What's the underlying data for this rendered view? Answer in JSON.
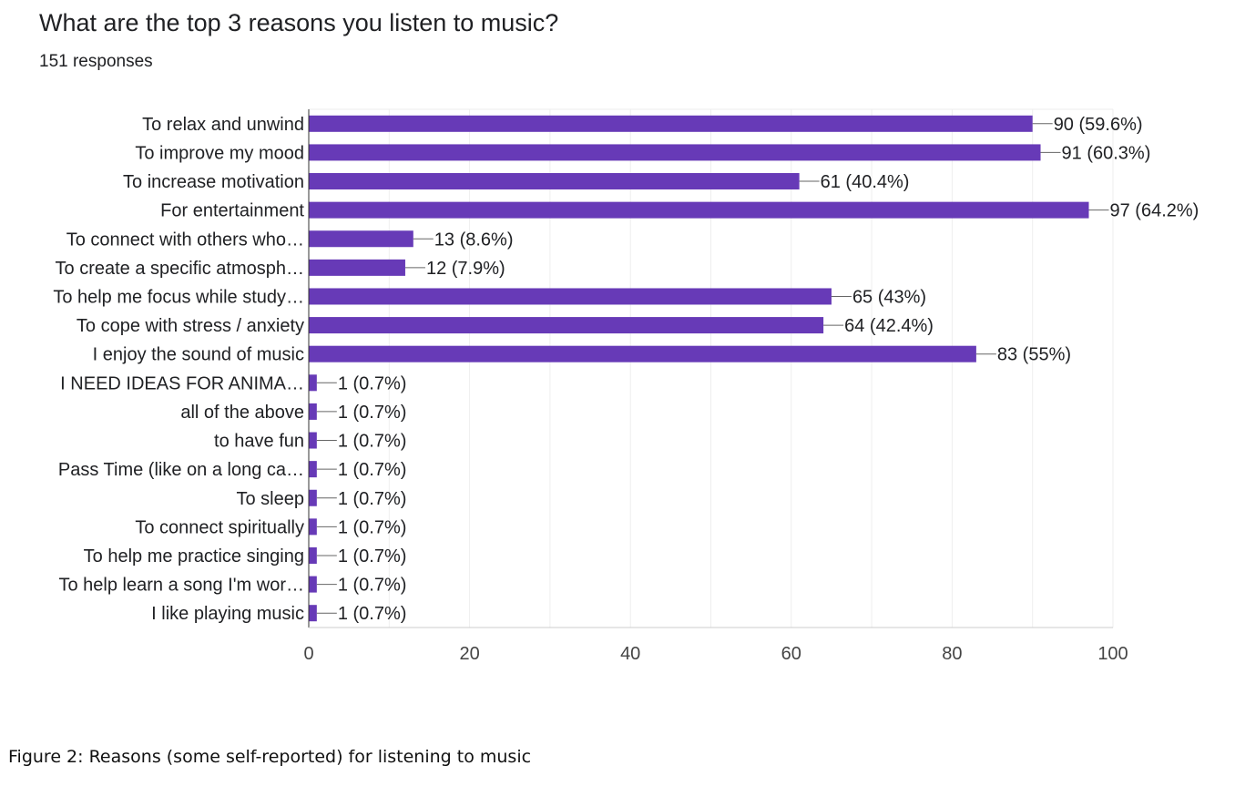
{
  "chart_data": {
    "type": "bar",
    "orientation": "horizontal",
    "title": "What are the top 3 reasons you listen to music?",
    "subtitle": "151 responses",
    "categories": [
      "To relax and unwind",
      "To improve my mood",
      "To increase motivation",
      "For entertainment",
      "To connect with others who…",
      "To create a specific atmosph…",
      "To help me focus while study…",
      "To cope with stress / anxiety",
      "I enjoy the sound of music",
      "I NEED IDEAS FOR ANIMA…",
      "all of the above",
      "to have fun",
      "Pass Time (like on a long ca…",
      "To sleep",
      "To connect spiritually",
      "To help me practice singing",
      "To help learn a song I'm wor…",
      "I like playing music"
    ],
    "values": [
      90,
      91,
      61,
      97,
      13,
      12,
      65,
      64,
      83,
      1,
      1,
      1,
      1,
      1,
      1,
      1,
      1,
      1
    ],
    "data_labels": [
      "90 (59.6%)",
      "91 (60.3%)",
      "61 (40.4%)",
      "97 (64.2%)",
      "13 (8.6%)",
      "12 (7.9%)",
      "65 (43%)",
      "64 (42.4%)",
      "83 (55%)",
      "1 (0.7%)",
      "1 (0.7%)",
      "1 (0.7%)",
      "1 (0.7%)",
      "1 (0.7%)",
      "1 (0.7%)",
      "1 (0.7%)",
      "1 (0.7%)",
      "1 (0.7%)"
    ],
    "xlim": [
      0,
      100
    ],
    "xticks": [
      0,
      20,
      40,
      60,
      80,
      100
    ],
    "xtick_labels": [
      "0",
      "20",
      "40",
      "60",
      "80",
      "100"
    ],
    "grid": true,
    "legend": "none",
    "bar_color": "#673ab7"
  },
  "caption": "Figure 2: Reasons (some self-reported) for listening to music"
}
